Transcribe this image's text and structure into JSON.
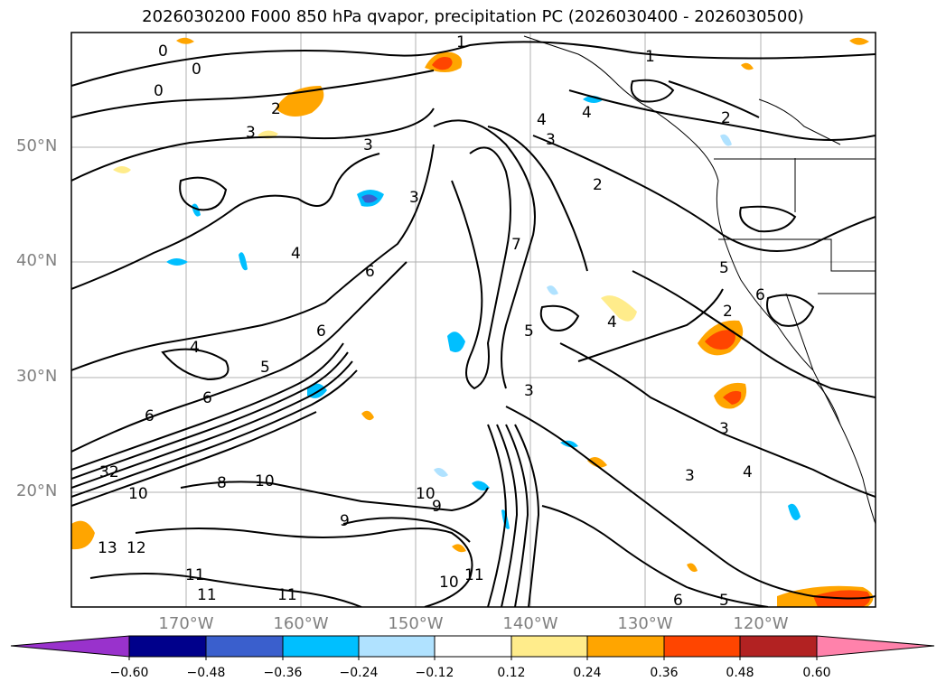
{
  "title": "2026030200 F000 850 hPa qvapor, precipitation PC (2026030400 - 2026030500)",
  "axes": {
    "lat_ticks": [
      "50°N",
      "40°N",
      "30°N",
      "20°N"
    ],
    "lon_ticks": [
      "170°W",
      "160°W",
      "150°W",
      "140°W",
      "130°W",
      "120°W"
    ]
  },
  "colorbar": {
    "labels": [
      "−0.60",
      "−0.48",
      "−0.36",
      "−0.24",
      "−0.12",
      "0.12",
      "0.24",
      "0.36",
      "0.48",
      "0.60"
    ],
    "colors": [
      "#9932cc",
      "#00008b",
      "#3a5fcd",
      "#00bfff",
      "#b0e2ff",
      "#ffffff",
      "#ffec8b",
      "#ffa500",
      "#ff4500",
      "#b22222",
      "#ff82ab"
    ]
  },
  "contour_labels": [
    "0",
    "0",
    "0",
    "1",
    "1",
    "2",
    "2",
    "2",
    "2",
    "3",
    "3",
    "3",
    "3",
    "3",
    "3",
    "3",
    "4",
    "4",
    "4",
    "4",
    "4",
    "4",
    "5",
    "5",
    "5",
    "5",
    "6",
    "6",
    "6",
    "6",
    "6",
    "6",
    "7",
    "8",
    "9",
    "9",
    "10",
    "10",
    "10",
    "10",
    "11",
    "11",
    "11",
    "11",
    "12",
    "13",
    "32"
  ]
}
